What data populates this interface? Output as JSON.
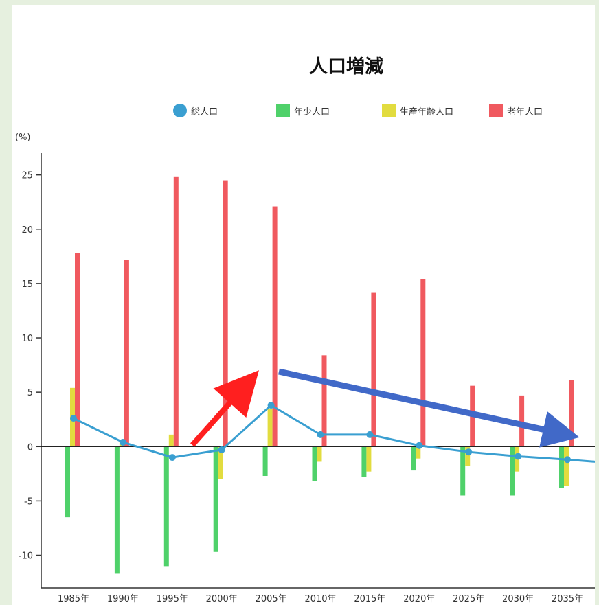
{
  "chart_data": {
    "type": "bar",
    "title": "人口増減",
    "ylabel": "(%)",
    "xlabel": "",
    "ylim": [
      -13,
      27
    ],
    "yticks": [
      25,
      20,
      15,
      10,
      5,
      0,
      -5,
      -10
    ],
    "categories": [
      "1985年",
      "1990年",
      "1995年",
      "2000年",
      "2005年",
      "2010年",
      "2015年",
      "2020年",
      "2025年",
      "2030年",
      "2035年"
    ],
    "legend_position": "top",
    "grid": false,
    "series": [
      {
        "name": "総人口",
        "kind": "line",
        "color": "#3a9fd1",
        "values": [
          2.6,
          0.4,
          -1.0,
          -0.3,
          3.8,
          1.1,
          1.1,
          0.1,
          -0.5,
          -0.9,
          -1.2
        ],
        "extension_value": -1.4
      },
      {
        "name": "年少人口",
        "kind": "bar",
        "color": "#4fd16a",
        "values": [
          -6.5,
          -11.7,
          -11.0,
          -9.7,
          -2.7,
          -3.2,
          -2.8,
          -2.2,
          -4.5,
          -4.5,
          -3.8
        ]
      },
      {
        "name": "生産年齢人口",
        "kind": "bar",
        "color": "#e2dc3f",
        "values": [
          5.4,
          0.5,
          1.1,
          -3.0,
          3.5,
          -1.4,
          -2.3,
          -1.1,
          -1.8,
          -2.3,
          -3.6
        ]
      },
      {
        "name": "老年人口",
        "kind": "bar",
        "color": "#f0595f",
        "values": [
          17.8,
          17.2,
          24.8,
          24.5,
          22.1,
          8.4,
          14.2,
          15.4,
          5.6,
          4.7,
          6.1
        ]
      }
    ],
    "annotations": [
      {
        "kind": "arrow",
        "color": "#ff1f1f",
        "meaning": "increase"
      },
      {
        "kind": "arrow",
        "color": "#4169c8",
        "meaning": "decline"
      }
    ]
  }
}
